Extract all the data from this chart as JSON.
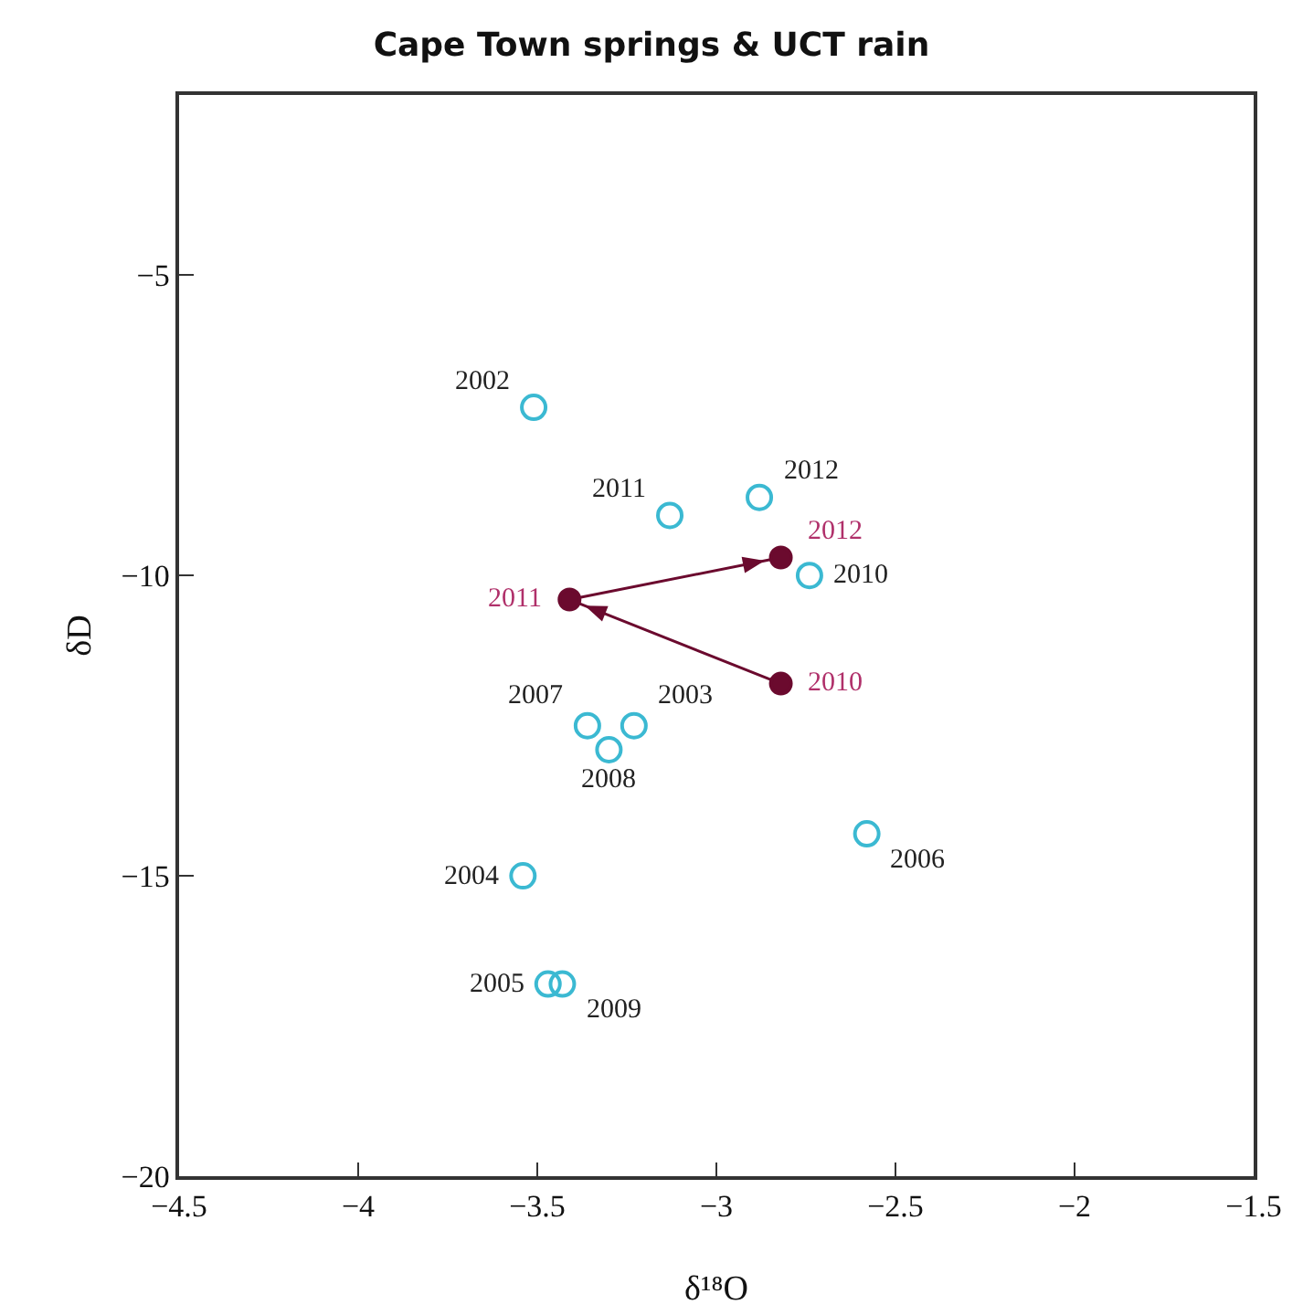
{
  "chart_data": {
    "type": "scatter",
    "title": "Cape Town springs & UCT rain",
    "xlabel": "δ¹⁸O",
    "ylabel": "δD",
    "xlim": [
      -4.5,
      -1.5
    ],
    "xticks": [
      -4.5,
      -4,
      -3.5,
      -3,
      -2.5,
      -2,
      -1.5
    ],
    "ylim": [
      -20,
      -2
    ],
    "yticks": [
      -20,
      -15,
      -10,
      -5
    ],
    "series": [
      {
        "marker": "circle",
        "color": "#3bb9d2",
        "x": [
          -3.51,
          -3.13,
          -2.88,
          -2.74,
          -3.36,
          -3.23,
          -3.3,
          -3.54,
          -2.58,
          -3.47,
          -3.43
        ],
        "values": [
          -7.2,
          -9.0,
          -8.7,
          -10.0,
          -12.5,
          -12.5,
          -12.9,
          -15.0,
          -14.3,
          -16.8,
          -16.8
        ]
      },
      {
        "type": "line",
        "marker": "circle",
        "line_style": "solid",
        "color": "#6b0a2e",
        "x": [
          -2.82,
          -3.41,
          -2.82
        ],
        "values": [
          -11.8,
          -10.4,
          -9.7
        ]
      }
    ],
    "annotations": [
      {
        "text": "2002",
        "x": -3.51,
        "y": -7.2
      },
      {
        "text": "2011",
        "x": -3.13,
        "y": -9.0
      },
      {
        "text": "2012",
        "x": -2.88,
        "y": -8.7
      },
      {
        "text": "2010",
        "x": -2.74,
        "y": -10.0
      },
      {
        "text": "2007",
        "x": -3.36,
        "y": -12.5
      },
      {
        "text": "2003",
        "x": -3.23,
        "y": -12.5
      },
      {
        "text": "2008",
        "x": -3.3,
        "y": -12.9
      },
      {
        "text": "2004",
        "x": -3.54,
        "y": -15.0
      },
      {
        "text": "2006",
        "x": -2.58,
        "y": -14.3
      },
      {
        "text": "2005",
        "x": -3.47,
        "y": -16.8
      },
      {
        "text": "2009",
        "x": -3.43,
        "y": -16.8
      },
      {
        "text": "2010",
        "x": -2.82,
        "y": -11.8
      },
      {
        "text": "2011",
        "x": -3.41,
        "y": -10.4
      },
      {
        "text": "2012",
        "x": -2.82,
        "y": -9.7
      }
    ]
  }
}
